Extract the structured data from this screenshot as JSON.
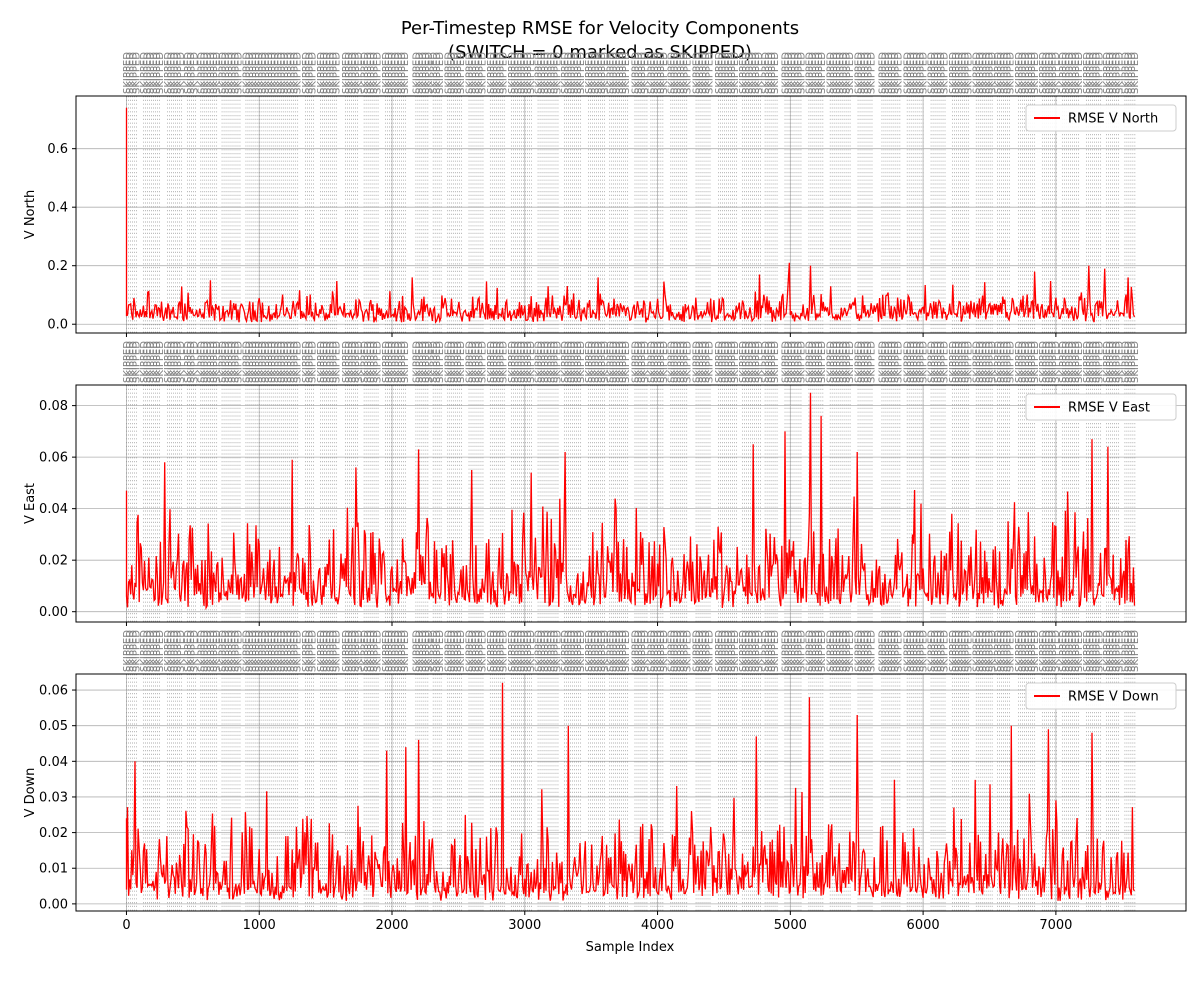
{
  "chart_data": {
    "type": "line",
    "title": [
      "Per-Timestep RMSE for Velocity Components",
      "(SWITCH = 0 marked as SKIPPED)"
    ],
    "xlabel": "Sample Index",
    "xlim": [
      -380,
      7980
    ],
    "xticks": [
      0,
      1000,
      2000,
      3000,
      4000,
      5000,
      6000,
      7000
    ],
    "x_tick_labels": [
      "0",
      "1000",
      "2000",
      "3000",
      "4000",
      "5000",
      "6000",
      "7000"
    ],
    "x_count": 7600,
    "shared_x": true,
    "grid": true,
    "line_color": "#ff0000",
    "skip_marker_color": "#808080",
    "skip_marker_text": "SKIPPED",
    "legend_position": "upper right",
    "skip_segments": [
      [
        0,
        75
      ],
      [
        130,
        260
      ],
      [
        310,
        420
      ],
      [
        460,
        530
      ],
      [
        560,
        690
      ],
      [
        720,
        860
      ],
      [
        900,
        1300
      ],
      [
        1350,
        1420
      ],
      [
        1460,
        1590
      ],
      [
        1650,
        1750
      ],
      [
        1790,
        1900
      ],
      [
        1950,
        2110
      ],
      [
        2180,
        2280
      ],
      [
        2310,
        2380
      ],
      [
        2420,
        2530
      ],
      [
        2580,
        2690
      ],
      [
        2740,
        2850
      ],
      [
        2900,
        3050
      ],
      [
        3100,
        3250
      ],
      [
        3300,
        3430
      ],
      [
        3480,
        3600
      ],
      [
        3640,
        3780
      ],
      [
        3830,
        3920
      ],
      [
        3950,
        4050
      ],
      [
        4100,
        4230
      ],
      [
        4290,
        4400
      ],
      [
        4460,
        4600
      ],
      [
        4640,
        4780
      ],
      [
        4810,
        4900
      ],
      [
        4960,
        5090
      ],
      [
        5140,
        5250
      ],
      [
        5300,
        5450
      ],
      [
        5510,
        5620
      ],
      [
        5690,
        5830
      ],
      [
        5880,
        6000
      ],
      [
        6060,
        6170
      ],
      [
        6220,
        6350
      ],
      [
        6400,
        6520
      ],
      [
        6560,
        6660
      ],
      [
        6720,
        6850
      ],
      [
        6900,
        7010
      ],
      [
        7050,
        7180
      ],
      [
        7230,
        7340
      ],
      [
        7380,
        7480
      ],
      [
        7520,
        7600
      ]
    ],
    "panels": [
      {
        "ylabel": "V North",
        "ylim": [
          -0.03,
          0.78
        ],
        "yticks": [
          0.0,
          0.2,
          0.4,
          0.6
        ],
        "y_tick_labels": [
          "0.0",
          "0.2",
          "0.4",
          "0.6"
        ],
        "series": [
          {
            "name": "RMSE V North",
            "base": 0.03,
            "spread": 0.06,
            "max_regular": 0.15,
            "initial_spike": 0.74,
            "peaks": [
              [
                4990,
                0.21
              ],
              [
                5150,
                0.2
              ],
              [
                4770,
                0.17
              ],
              [
                6840,
                0.18
              ],
              [
                7250,
                0.2
              ],
              [
                7370,
                0.19
              ],
              [
                2150,
                0.16
              ],
              [
                3550,
                0.16
              ],
              [
                630,
                0.15
              ],
              [
                7540,
                0.16
              ]
            ]
          }
        ]
      },
      {
        "ylabel": "V East",
        "ylim": [
          -0.004,
          0.088
        ],
        "yticks": [
          0.0,
          0.02,
          0.04,
          0.06,
          0.08
        ],
        "y_tick_labels": [
          "0.00",
          "0.02",
          "0.04",
          "0.06",
          "0.08"
        ],
        "series": [
          {
            "name": "RMSE V East",
            "base": 0.006,
            "spread": 0.024,
            "max_regular": 0.05,
            "initial_spike": 0.047,
            "peaks": [
              [
                5150,
                0.085
              ],
              [
                5230,
                0.076
              ],
              [
                4720,
                0.065
              ],
              [
                4960,
                0.07
              ],
              [
                7270,
                0.067
              ],
              [
                1250,
                0.059
              ],
              [
                290,
                0.058
              ],
              [
                2200,
                0.063
              ],
              [
                3300,
                0.062
              ],
              [
                5500,
                0.062
              ],
              [
                7390,
                0.064
              ],
              [
                1730,
                0.056
              ],
              [
                2600,
                0.055
              ],
              [
                3050,
                0.054
              ]
            ]
          }
        ]
      },
      {
        "ylabel": "V Down",
        "ylim": [
          -0.002,
          0.0645
        ],
        "yticks": [
          0.0,
          0.01,
          0.02,
          0.03,
          0.04,
          0.05,
          0.06
        ],
        "y_tick_labels": [
          "0.00",
          "0.01",
          "0.02",
          "0.03",
          "0.04",
          "0.05",
          "0.06"
        ],
        "series": [
          {
            "name": "RMSE V Down",
            "base": 0.004,
            "spread": 0.016,
            "max_regular": 0.035,
            "initial_spike": 0.024,
            "peaks": [
              [
                2830,
                0.062
              ],
              [
                5140,
                0.058
              ],
              [
                2200,
                0.046
              ],
              [
                3330,
                0.05
              ],
              [
                5500,
                0.053
              ],
              [
                4740,
                0.047
              ],
              [
                2100,
                0.044
              ],
              [
                7270,
                0.048
              ],
              [
                6660,
                0.05
              ],
              [
                60,
                0.04
              ],
              [
                1960,
                0.043
              ],
              [
                6940,
                0.049
              ]
            ]
          }
        ]
      }
    ]
  }
}
